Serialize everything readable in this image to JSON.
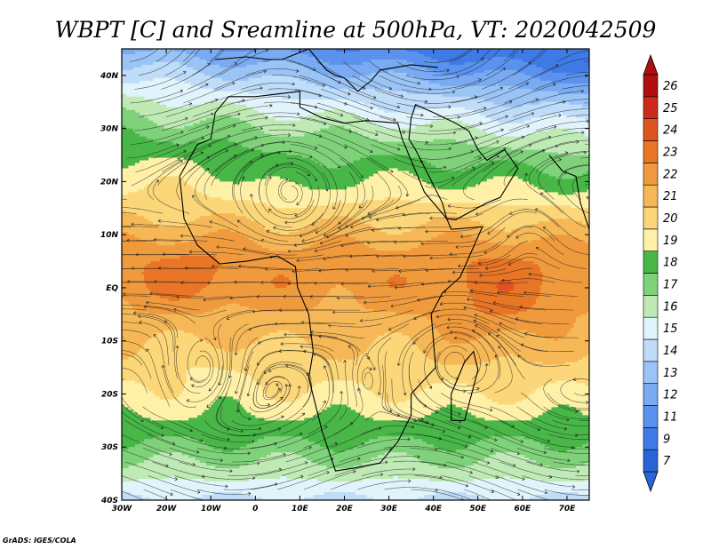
{
  "chart_data": {
    "type": "heatmap",
    "title": "WBPT [C] and Sreamline at 500hPa, VT: 2020042509",
    "variable": "WBPT [C]",
    "level": "500hPa",
    "valid_time": "2020042509",
    "x": {
      "range": [
        -30,
        75
      ],
      "ticks": [
        -30,
        -20,
        -10,
        0,
        10,
        20,
        30,
        40,
        50,
        60,
        70
      ],
      "tick_labels": [
        "30W",
        "20W",
        "10W",
        "0",
        "10E",
        "20E",
        "30E",
        "40E",
        "50E",
        "60E",
        "70E"
      ]
    },
    "y": {
      "range": [
        -40,
        45
      ],
      "ticks": [
        -40,
        -30,
        -20,
        -10,
        0,
        10,
        20,
        30,
        40
      ],
      "tick_labels": [
        "40S",
        "30S",
        "20S",
        "10S",
        "EQ",
        "10N",
        "20N",
        "30N",
        "40N"
      ]
    },
    "colorbar": {
      "levels": [
        "7",
        "9",
        "11",
        "12",
        "13",
        "14",
        "15",
        "16",
        "17",
        "18",
        "19",
        "20",
        "21",
        "22",
        "23",
        "24",
        "25",
        "26"
      ],
      "colors": [
        "#2b64d8",
        "#3f7be6",
        "#5a92ee",
        "#79aaf2",
        "#9bc4f6",
        "#bfdcf9",
        "#e2f4fb",
        "#bfeab5",
        "#7fd27a",
        "#49b748",
        "#fff0a8",
        "#fbd77a",
        "#f6b857",
        "#f09a3e",
        "#e87626",
        "#de5420",
        "#cc2b1b",
        "#b00e10"
      ],
      "low_cap_color": "#2b64d8",
      "high_cap_color": "#b00e10"
    }
  },
  "credit": "GrADS: IGES/COLA"
}
